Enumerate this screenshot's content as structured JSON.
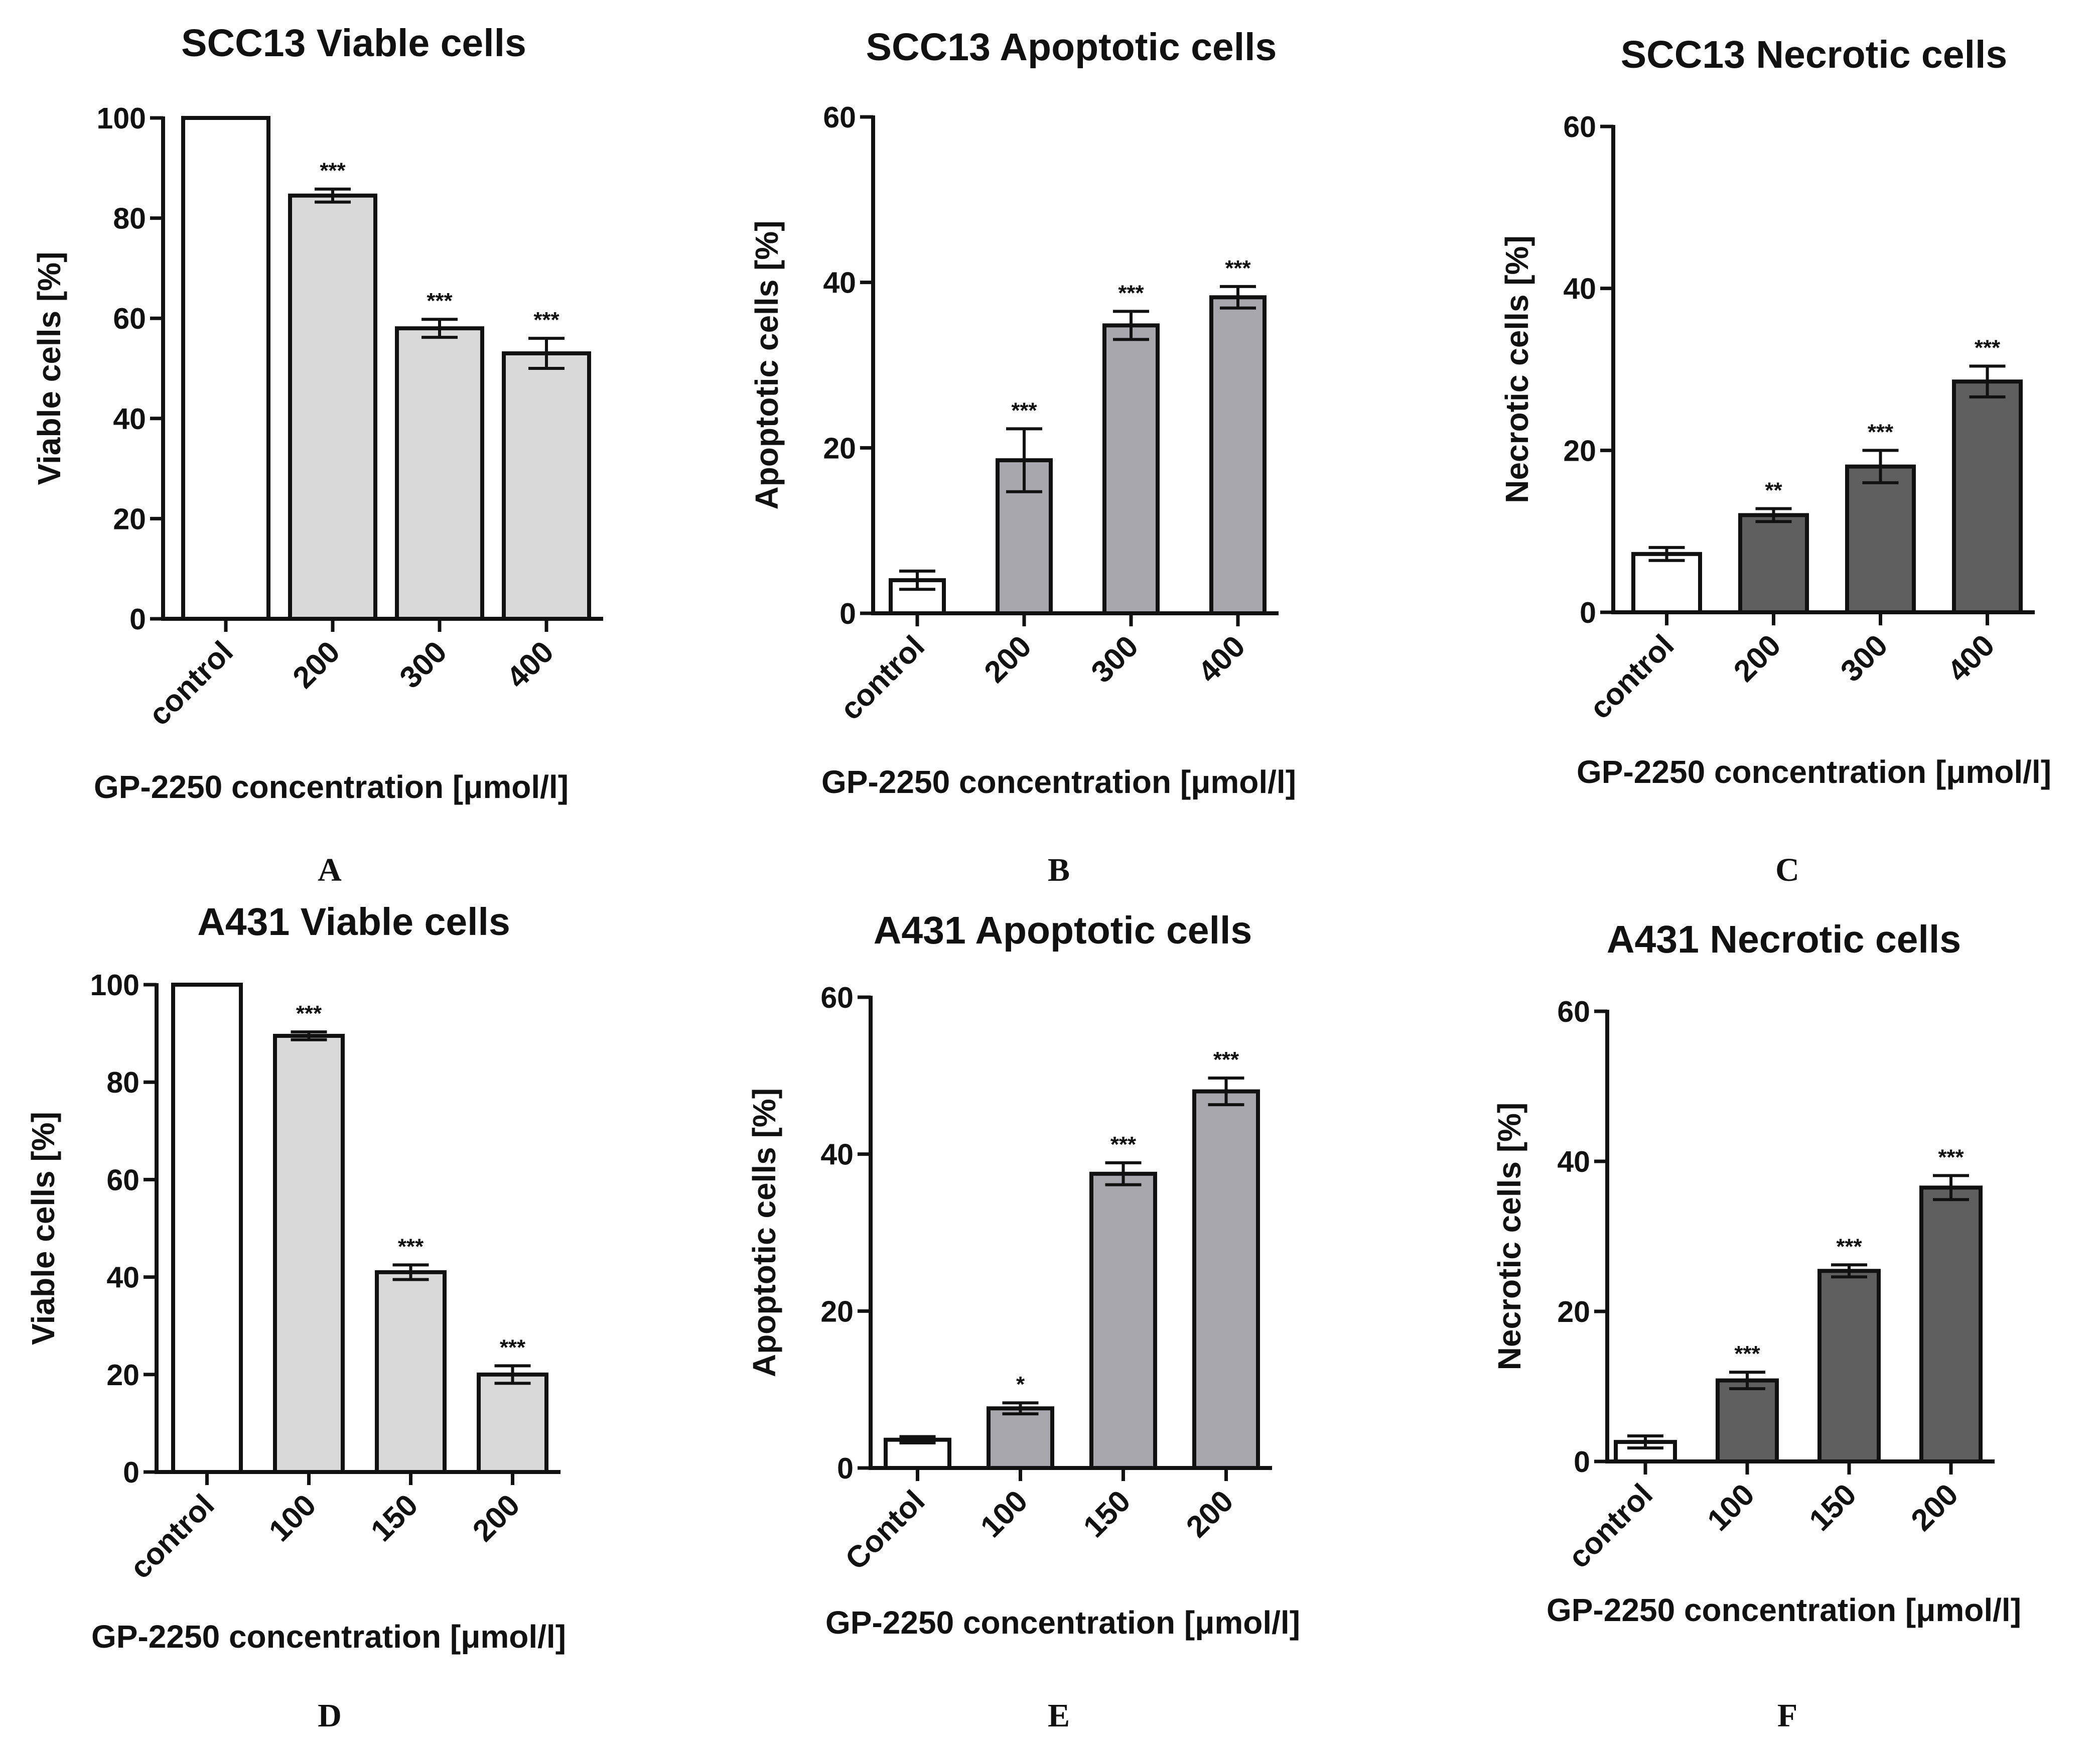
{
  "figure": {
    "bar_colors": {
      "control": "#ffffff",
      "viable": "#d9d9d9",
      "apoptotic": "#a7a7ad",
      "necrotic": "#5f5f5f"
    },
    "stroke_color": "#111111"
  },
  "chart_data": [
    {
      "type": "bar",
      "panel": "A",
      "title": "SCC13 Viable cells",
      "xlabel": "GP-2250 concentration [μmol/l]",
      "ylabel": "Viable cells [%]",
      "ylim": [
        0,
        100
      ],
      "yticks": [
        0,
        20,
        40,
        60,
        80,
        100
      ],
      "categories": [
        "control",
        "200",
        "300",
        "400"
      ],
      "values": [
        100,
        84.5,
        58,
        53
      ],
      "errors": [
        0,
        1.3,
        1.8,
        3
      ],
      "significance": [
        "",
        "***",
        "***",
        "***"
      ],
      "fill_key": "viable"
    },
    {
      "type": "bar",
      "panel": "B",
      "title": "SCC13 Apoptotic cells",
      "xlabel": "GP-2250 concentration [μmol/l]",
      "ylabel": "Apoptotic cells [%]",
      "ylim": [
        0,
        60
      ],
      "yticks": [
        0,
        20,
        40,
        60
      ],
      "categories": [
        "control",
        "200",
        "300",
        "400"
      ],
      "values": [
        4,
        18.5,
        34.8,
        38.2
      ],
      "errors": [
        1.1,
        3.8,
        1.7,
        1.3
      ],
      "significance": [
        "",
        "***",
        "***",
        "***"
      ],
      "fill_key": "apoptotic"
    },
    {
      "type": "bar",
      "panel": "C",
      "title": "SCC13 Necrotic cells",
      "xlabel": "GP-2250 concentration [μmol/l]",
      "ylabel": "Necrotic cells [%]",
      "ylim": [
        0,
        60
      ],
      "yticks": [
        0,
        20,
        40,
        60
      ],
      "categories": [
        "control",
        "200",
        "300",
        "400"
      ],
      "values": [
        7.2,
        12,
        18,
        28.5
      ],
      "errors": [
        0.8,
        0.8,
        2,
        1.9
      ],
      "significance": [
        "",
        "**",
        "***",
        "***"
      ],
      "fill_key": "necrotic"
    },
    {
      "type": "bar",
      "panel": "D",
      "title": "A431 Viable cells",
      "xlabel": "GP-2250 concentration [μmol/l]",
      "ylabel": "Viable cells [%]",
      "ylim": [
        0,
        100
      ],
      "yticks": [
        0,
        20,
        40,
        60,
        80,
        100
      ],
      "categories": [
        "control",
        "100",
        "150",
        "200"
      ],
      "values": [
        100,
        89.5,
        41,
        20
      ],
      "errors": [
        0,
        0.8,
        1.5,
        1.8
      ],
      "significance": [
        "",
        "***",
        "***",
        "***"
      ],
      "fill_key": "viable"
    },
    {
      "type": "bar",
      "panel": "E",
      "title": "A431 Apoptotic cells",
      "xlabel": "GP-2250 concentration [μmol/l]",
      "ylabel": "Apoptotic cells [%]",
      "ylim": [
        0,
        60
      ],
      "yticks": [
        0,
        20,
        40,
        60
      ],
      "categories": [
        "Contol",
        "100",
        "150",
        "200"
      ],
      "values": [
        3.6,
        7.6,
        37.5,
        48
      ],
      "errors": [
        0.4,
        0.7,
        1.4,
        1.7
      ],
      "significance": [
        "",
        "*",
        "***",
        "***"
      ],
      "fill_key": "apoptotic"
    },
    {
      "type": "bar",
      "panel": "F",
      "title": "A431 Necrotic cells",
      "xlabel": "GP-2250 concentration [μmol/l]",
      "ylabel": "Necrotic cells [%]",
      "ylim": [
        0,
        60
      ],
      "yticks": [
        0,
        20,
        40,
        60
      ],
      "categories": [
        "control",
        "100",
        "150",
        "200"
      ],
      "values": [
        2.6,
        10.8,
        25.4,
        36.5
      ],
      "errors": [
        0.8,
        1.1,
        0.8,
        1.6
      ],
      "significance": [
        "",
        "***",
        "***",
        "***"
      ],
      "fill_key": "necrotic"
    }
  ]
}
